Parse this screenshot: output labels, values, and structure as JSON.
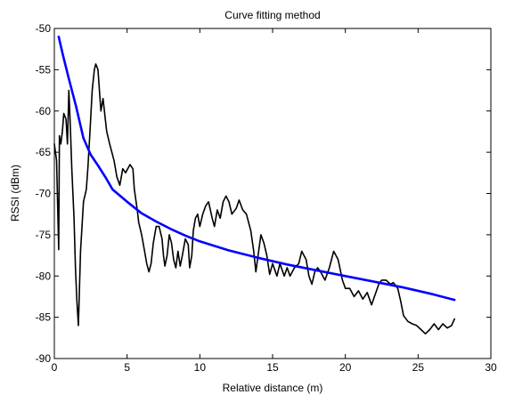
{
  "chart_data": {
    "type": "line",
    "title": "Curve fitting method",
    "xlabel": "Relative distance (m)",
    "ylabel": "RSSI (dBm)",
    "xlim": [
      0,
      30
    ],
    "ylim": [
      -90,
      -50
    ],
    "xticks": [
      0,
      5,
      10,
      15,
      20,
      25,
      30
    ],
    "yticks": [
      -50,
      -55,
      -60,
      -65,
      -70,
      -75,
      -80,
      -85,
      -90
    ],
    "grid": false,
    "series": [
      {
        "color": "#000000",
        "points": [
          [
            0.0,
            -64
          ],
          [
            0.15,
            -66
          ],
          [
            0.3,
            -76.8
          ],
          [
            0.35,
            -63
          ],
          [
            0.45,
            -64
          ],
          [
            0.55,
            -62.5
          ],
          [
            0.65,
            -60.3
          ],
          [
            0.8,
            -61
          ],
          [
            0.9,
            -64
          ],
          [
            1.0,
            -57.5
          ],
          [
            1.1,
            -62
          ],
          [
            1.2,
            -67
          ],
          [
            1.35,
            -73
          ],
          [
            1.45,
            -79
          ],
          [
            1.55,
            -83
          ],
          [
            1.65,
            -86
          ],
          [
            1.8,
            -77
          ],
          [
            2.0,
            -71
          ],
          [
            2.2,
            -69.5
          ],
          [
            2.3,
            -67
          ],
          [
            2.45,
            -62.5
          ],
          [
            2.6,
            -57.5
          ],
          [
            2.75,
            -55
          ],
          [
            2.85,
            -54.3
          ],
          [
            3.0,
            -55
          ],
          [
            3.1,
            -57.5
          ],
          [
            3.2,
            -60
          ],
          [
            3.35,
            -58.5
          ],
          [
            3.5,
            -61
          ],
          [
            3.6,
            -62.5
          ],
          [
            3.8,
            -64
          ],
          [
            4.1,
            -66
          ],
          [
            4.3,
            -68
          ],
          [
            4.5,
            -69
          ],
          [
            4.7,
            -67
          ],
          [
            4.9,
            -67.5
          ],
          [
            5.2,
            -66.5
          ],
          [
            5.4,
            -67
          ],
          [
            5.5,
            -69.5
          ],
          [
            5.7,
            -72
          ],
          [
            5.8,
            -73.5
          ],
          [
            6.0,
            -75
          ],
          [
            6.2,
            -77
          ],
          [
            6.35,
            -78.5
          ],
          [
            6.5,
            -79.5
          ],
          [
            6.65,
            -78.5
          ],
          [
            6.8,
            -76
          ],
          [
            7.0,
            -74
          ],
          [
            7.2,
            -74
          ],
          [
            7.4,
            -75.5
          ],
          [
            7.5,
            -77.5
          ],
          [
            7.6,
            -78.8
          ],
          [
            7.75,
            -77.5
          ],
          [
            7.9,
            -75
          ],
          [
            8.05,
            -76
          ],
          [
            8.2,
            -78
          ],
          [
            8.35,
            -79
          ],
          [
            8.5,
            -77
          ],
          [
            8.65,
            -78.8
          ],
          [
            8.8,
            -77.5
          ],
          [
            9.0,
            -75.5
          ],
          [
            9.2,
            -76.2
          ],
          [
            9.3,
            -79
          ],
          [
            9.45,
            -77.5
          ],
          [
            9.55,
            -74.5
          ],
          [
            9.7,
            -73
          ],
          [
            9.85,
            -72.5
          ],
          [
            10.0,
            -74
          ],
          [
            10.2,
            -72.5
          ],
          [
            10.4,
            -71.5
          ],
          [
            10.6,
            -71
          ],
          [
            10.85,
            -73
          ],
          [
            11.0,
            -74
          ],
          [
            11.2,
            -72
          ],
          [
            11.4,
            -73
          ],
          [
            11.6,
            -71
          ],
          [
            11.8,
            -70.3
          ],
          [
            12.0,
            -71
          ],
          [
            12.2,
            -72.5
          ],
          [
            12.5,
            -71.8
          ],
          [
            12.7,
            -70.8
          ],
          [
            12.95,
            -72
          ],
          [
            13.2,
            -72.5
          ],
          [
            13.5,
            -74.5
          ],
          [
            13.7,
            -77
          ],
          [
            13.85,
            -79.5
          ],
          [
            14.0,
            -77.5
          ],
          [
            14.2,
            -75
          ],
          [
            14.4,
            -76
          ],
          [
            14.6,
            -77.5
          ],
          [
            14.8,
            -79.8
          ],
          [
            15.0,
            -78.5
          ],
          [
            15.3,
            -80
          ],
          [
            15.5,
            -78.5
          ],
          [
            15.8,
            -80
          ],
          [
            16.0,
            -79
          ],
          [
            16.2,
            -80
          ],
          [
            16.5,
            -79
          ],
          [
            16.8,
            -78.5
          ],
          [
            17.0,
            -77
          ],
          [
            17.3,
            -78
          ],
          [
            17.5,
            -80
          ],
          [
            17.7,
            -81
          ],
          [
            17.9,
            -79.5
          ],
          [
            18.1,
            -79
          ],
          [
            18.3,
            -79.5
          ],
          [
            18.6,
            -80.5
          ],
          [
            18.9,
            -79
          ],
          [
            19.2,
            -77
          ],
          [
            19.5,
            -78
          ],
          [
            19.8,
            -80.5
          ],
          [
            20.0,
            -81.5
          ],
          [
            20.3,
            -81.5
          ],
          [
            20.6,
            -82.5
          ],
          [
            20.9,
            -81.8
          ],
          [
            21.2,
            -82.8
          ],
          [
            21.5,
            -82
          ],
          [
            21.8,
            -83.5
          ],
          [
            22.0,
            -82.5
          ],
          [
            22.3,
            -81
          ],
          [
            22.5,
            -80.5
          ],
          [
            22.8,
            -80.5
          ],
          [
            23.1,
            -81
          ],
          [
            23.3,
            -80.8
          ],
          [
            23.6,
            -81.5
          ],
          [
            23.8,
            -83
          ],
          [
            24.0,
            -84.8
          ],
          [
            24.3,
            -85.5
          ],
          [
            24.6,
            -85.8
          ],
          [
            24.9,
            -86
          ],
          [
            25.2,
            -86.5
          ],
          [
            25.5,
            -87
          ],
          [
            25.8,
            -86.5
          ],
          [
            26.1,
            -85.8
          ],
          [
            26.4,
            -86.5
          ],
          [
            26.7,
            -85.8
          ],
          [
            27.0,
            -86.3
          ],
          [
            27.3,
            -86
          ],
          [
            27.5,
            -85.2
          ]
        ]
      },
      {
        "color": "#0000ff",
        "points": [
          [
            0.3,
            -51
          ],
          [
            0.6,
            -53.3
          ],
          [
            1.0,
            -56.1
          ],
          [
            1.5,
            -59.5
          ],
          [
            2.0,
            -63.3
          ],
          [
            2.5,
            -65.3
          ],
          [
            3.0,
            -66.6
          ],
          [
            3.5,
            -68
          ],
          [
            4.0,
            -69.5
          ],
          [
            5.0,
            -71
          ],
          [
            6.0,
            -72.4
          ],
          [
            7.0,
            -73.4
          ],
          [
            8.0,
            -74.3
          ],
          [
            9.0,
            -75.1
          ],
          [
            10.0,
            -75.8
          ],
          [
            12.0,
            -76.9
          ],
          [
            14.0,
            -77.8
          ],
          [
            16.0,
            -78.6
          ],
          [
            18.0,
            -79.3
          ],
          [
            20.0,
            -80
          ],
          [
            22.0,
            -80.7
          ],
          [
            24.0,
            -81.4
          ],
          [
            26.0,
            -82.2
          ],
          [
            27.5,
            -82.9
          ]
        ]
      }
    ]
  }
}
